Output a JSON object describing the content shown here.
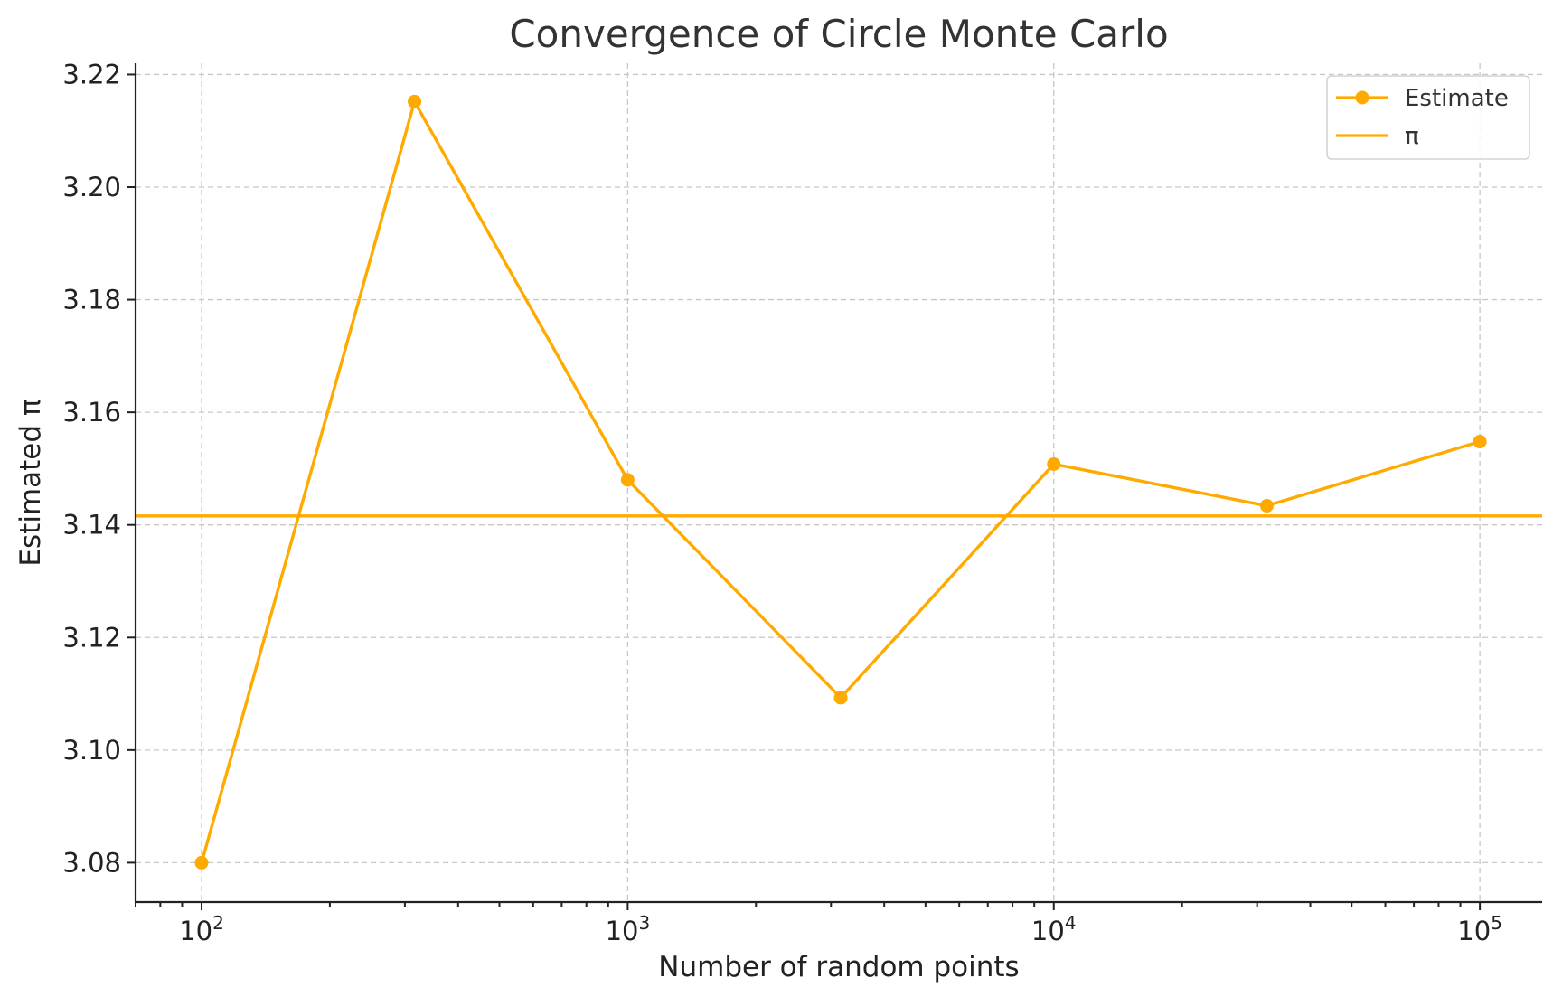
{
  "chart_data": {
    "type": "line",
    "title": "Convergence of Circle Monte Carlo",
    "xlabel": "Number of random points",
    "ylabel": "Estimated π",
    "xscale": "log",
    "xlim": [
      70,
      140000
    ],
    "ylim": [
      3.073,
      3.222
    ],
    "x_ticks": [
      {
        "value": 100,
        "base": "10",
        "exp": "2"
      },
      {
        "value": 1000,
        "base": "10",
        "exp": "3"
      },
      {
        "value": 10000,
        "base": "10",
        "exp": "4"
      },
      {
        "value": 100000,
        "base": "10",
        "exp": "5"
      }
    ],
    "y_ticks": [
      {
        "value": 3.08,
        "label": "3.08"
      },
      {
        "value": 3.1,
        "label": "3.10"
      },
      {
        "value": 3.12,
        "label": "3.12"
      },
      {
        "value": 3.14,
        "label": "3.14"
      },
      {
        "value": 3.16,
        "label": "3.16"
      },
      {
        "value": 3.18,
        "label": "3.18"
      },
      {
        "value": 3.2,
        "label": "3.20"
      },
      {
        "value": 3.22,
        "label": "3.22"
      }
    ],
    "grid": true,
    "legend_position": "top-right",
    "series": [
      {
        "name": "Estimate",
        "kind": "line-marker",
        "color": "#ffaa00",
        "x": [
          100,
          316,
          1000,
          3162,
          10000,
          31623,
          100000
        ],
        "y": [
          3.08,
          3.2152,
          3.148,
          3.1093,
          3.1508,
          3.1434,
          3.1548
        ]
      },
      {
        "name": "π",
        "kind": "hline",
        "color": "#ffaa00",
        "y": 3.14159
      }
    ]
  }
}
